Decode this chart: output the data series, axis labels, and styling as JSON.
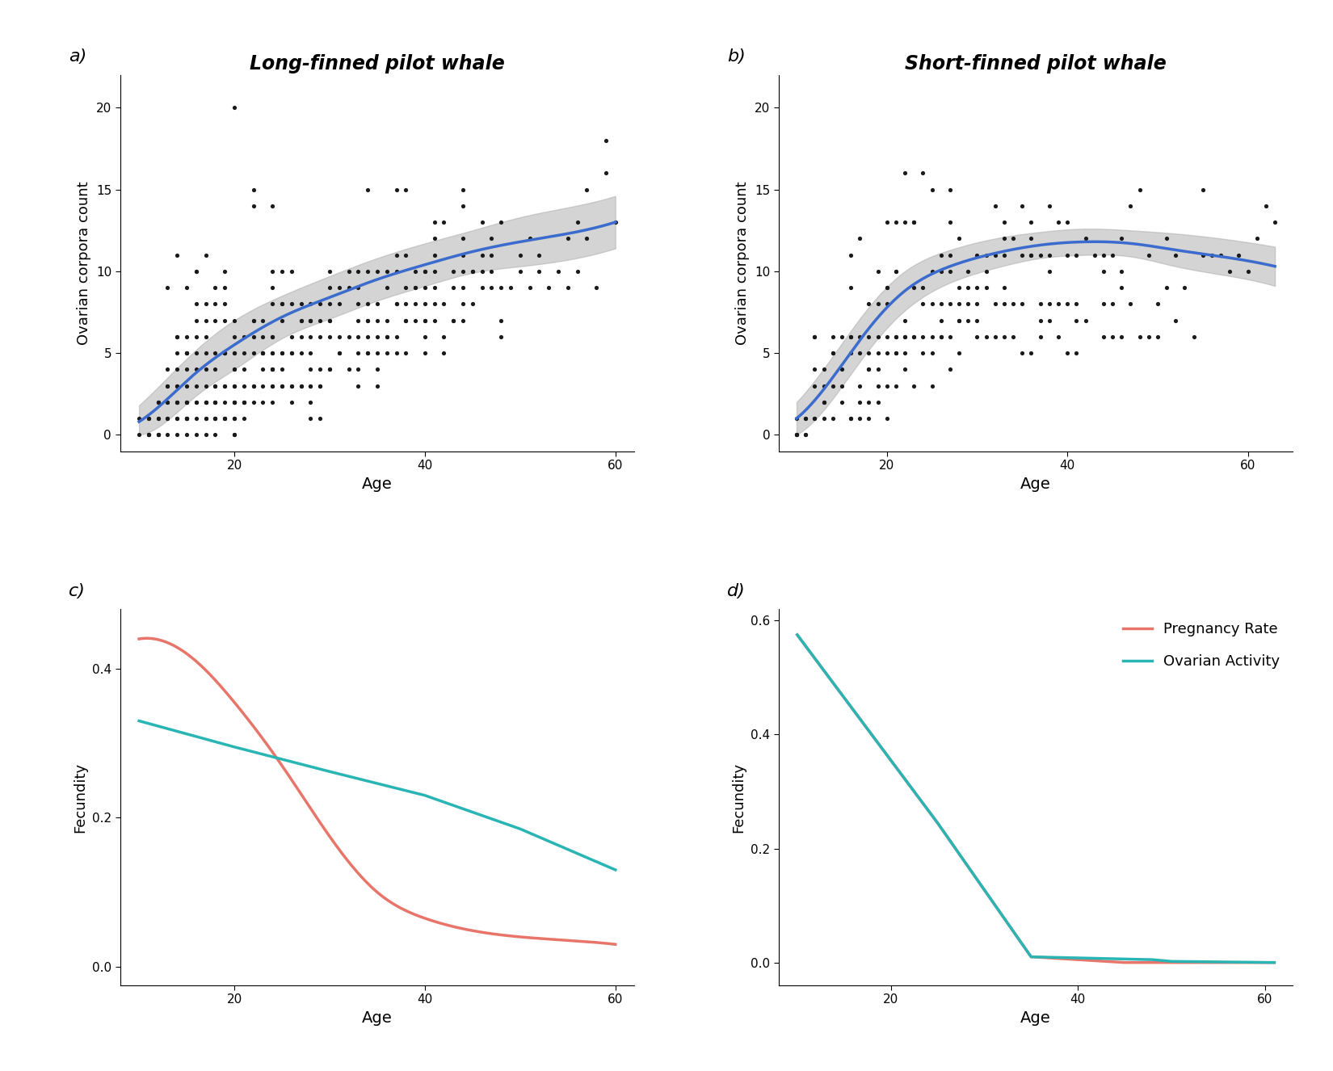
{
  "panel_a_title": "Long-finned pilot whale",
  "panel_b_title": "Short-finned pilot whale",
  "panel_a_label": "a)",
  "panel_b_label": "b)",
  "panel_c_label": "c)",
  "panel_d_label": "d)",
  "ylabel_scatter": "Ovarian corpora count",
  "xlabel_scatter": "Age",
  "ylabel_fecundity": "Fecundity",
  "xlabel_fecundity": "Age",
  "scatter_color": "#1a1a1a",
  "line_color": "#3b6bcc",
  "ci_color": "#aaaaaa",
  "pregnancy_color": "#e8756a",
  "ovarian_color": "#2ab5b5",
  "legend_pregnancy": "Pregnancy Rate",
  "legend_ovarian": "Ovarian Activity",
  "panel_a_scatter_x": [
    10,
    10,
    11,
    11,
    11,
    11,
    11,
    12,
    12,
    12,
    12,
    12,
    12,
    12,
    12,
    13,
    13,
    13,
    13,
    13,
    13,
    13,
    13,
    13,
    14,
    14,
    14,
    14,
    14,
    14,
    14,
    14,
    14,
    14,
    14,
    14,
    14,
    15,
    15,
    15,
    15,
    15,
    15,
    15,
    15,
    15,
    15,
    15,
    15,
    15,
    15,
    15,
    16,
    16,
    16,
    16,
    16,
    16,
    16,
    16,
    16,
    16,
    16,
    16,
    17,
    17,
    17,
    17,
    17,
    17,
    17,
    17,
    17,
    17,
    17,
    17,
    17,
    18,
    18,
    18,
    18,
    18,
    18,
    18,
    18,
    18,
    18,
    18,
    18,
    18,
    18,
    19,
    19,
    19,
    19,
    19,
    19,
    19,
    19,
    19,
    19,
    19,
    19,
    19,
    20,
    20,
    20,
    20,
    20,
    20,
    20,
    20,
    20,
    20,
    20,
    20,
    20,
    20,
    20,
    20,
    21,
    21,
    21,
    21,
    21,
    21,
    21,
    21,
    22,
    22,
    22,
    22,
    22,
    22,
    22,
    22,
    22,
    23,
    23,
    23,
    23,
    23,
    23,
    23,
    23,
    24,
    24,
    24,
    24,
    24,
    24,
    24,
    24,
    24,
    24,
    24,
    24,
    24,
    24,
    25,
    25,
    25,
    25,
    25,
    25,
    25,
    25,
    25,
    26,
    26,
    26,
    26,
    26,
    26,
    26,
    26,
    27,
    27,
    27,
    27,
    27,
    27,
    27,
    28,
    28,
    28,
    28,
    28,
    28,
    28,
    28,
    28,
    28,
    28,
    29,
    29,
    29,
    29,
    29,
    29,
    29,
    30,
    30,
    30,
    30,
    30,
    30,
    30,
    30,
    31,
    31,
    31,
    31,
    31,
    32,
    32,
    32,
    32,
    33,
    33,
    33,
    33,
    33,
    33,
    33,
    33,
    34,
    34,
    34,
    34,
    34,
    34,
    34,
    34,
    35,
    35,
    35,
    35,
    35,
    35,
    35,
    36,
    36,
    36,
    36,
    36,
    36,
    37,
    37,
    37,
    37,
    37,
    37,
    37,
    38,
    38,
    38,
    38,
    38,
    38,
    38,
    39,
    39,
    39,
    39,
    39,
    40,
    40,
    40,
    40,
    40,
    40,
    40,
    40,
    41,
    41,
    41,
    41,
    41,
    41,
    41,
    42,
    42,
    42,
    42,
    43,
    43,
    43,
    43,
    44,
    44,
    44,
    44,
    44,
    44,
    44,
    44,
    45,
    45,
    45,
    46,
    46,
    46,
    46,
    47,
    47,
    47,
    47,
    48,
    48,
    48,
    48,
    49,
    50,
    50,
    51,
    51,
    52,
    52,
    53,
    54,
    55,
    55,
    56,
    56,
    57,
    57,
    58,
    59,
    59,
    60
  ],
  "panel_a_scatter_y": [
    0,
    1,
    0,
    0,
    0,
    1,
    1,
    0,
    0,
    0,
    1,
    1,
    2,
    2,
    2,
    0,
    1,
    1,
    2,
    2,
    3,
    3,
    4,
    9,
    0,
    1,
    1,
    2,
    2,
    2,
    3,
    3,
    4,
    5,
    6,
    6,
    11,
    0,
    1,
    1,
    1,
    1,
    2,
    2,
    2,
    3,
    4,
    5,
    5,
    5,
    6,
    9,
    10,
    0,
    1,
    2,
    2,
    3,
    4,
    5,
    6,
    7,
    8,
    10,
    0,
    1,
    1,
    2,
    2,
    2,
    3,
    4,
    5,
    6,
    7,
    8,
    11,
    0,
    1,
    1,
    1,
    2,
    2,
    2,
    3,
    3,
    4,
    5,
    7,
    8,
    9,
    9,
    1,
    1,
    1,
    2,
    3,
    3,
    5,
    5,
    5,
    7,
    8,
    10,
    0,
    1,
    1,
    2,
    2,
    2,
    3,
    3,
    4,
    4,
    5,
    5,
    6,
    7,
    20,
    0,
    1,
    2,
    2,
    3,
    4,
    5,
    6,
    2,
    2,
    3,
    5,
    6,
    7,
    7,
    14,
    15,
    3,
    3,
    4,
    5,
    5,
    5,
    6,
    7,
    2,
    2,
    3,
    3,
    4,
    4,
    4,
    5,
    5,
    6,
    6,
    8,
    9,
    10,
    14,
    3,
    3,
    4,
    5,
    5,
    7,
    8,
    8,
    10,
    2,
    3,
    3,
    5,
    5,
    6,
    8,
    10,
    3,
    3,
    5,
    6,
    7,
    7,
    8,
    1,
    2,
    3,
    3,
    4,
    5,
    6,
    7,
    7,
    7,
    8,
    1,
    3,
    3,
    4,
    6,
    7,
    8,
    4,
    4,
    6,
    7,
    7,
    8,
    9,
    10,
    5,
    5,
    6,
    8,
    9,
    4,
    6,
    9,
    10,
    3,
    4,
    5,
    6,
    7,
    8,
    9,
    10,
    5,
    5,
    6,
    7,
    7,
    8,
    10,
    15,
    3,
    4,
    5,
    6,
    7,
    8,
    10,
    5,
    6,
    6,
    7,
    9,
    10,
    5,
    6,
    8,
    8,
    10,
    11,
    15,
    5,
    7,
    7,
    8,
    9,
    11,
    15,
    7,
    8,
    9,
    9,
    10,
    5,
    6,
    7,
    7,
    8,
    9,
    10,
    10,
    7,
    8,
    9,
    10,
    11,
    12,
    13,
    5,
    6,
    8,
    13,
    7,
    7,
    9,
    10,
    7,
    8,
    9,
    10,
    11,
    12,
    14,
    15,
    8,
    10,
    10,
    9,
    10,
    11,
    13,
    9,
    10,
    11,
    12,
    6,
    7,
    9,
    13,
    9,
    10,
    11,
    9,
    12,
    10,
    11,
    9,
    10,
    9,
    12,
    13,
    10,
    15,
    12,
    9,
    16,
    18,
    13
  ],
  "panel_b_scatter_x": [
    10,
    10,
    10,
    10,
    11,
    11,
    11,
    11,
    12,
    12,
    12,
    12,
    12,
    12,
    13,
    13,
    13,
    13,
    13,
    14,
    14,
    14,
    14,
    14,
    15,
    15,
    15,
    15,
    16,
    16,
    16,
    16,
    16,
    16,
    16,
    17,
    17,
    17,
    17,
    17,
    17,
    18,
    18,
    18,
    18,
    18,
    18,
    18,
    19,
    19,
    19,
    19,
    19,
    19,
    19,
    20,
    20,
    20,
    20,
    20,
    20,
    20,
    20,
    21,
    21,
    21,
    21,
    21,
    21,
    21,
    21,
    22,
    22,
    22,
    22,
    22,
    22,
    22,
    23,
    23,
    23,
    23,
    23,
    23,
    24,
    24,
    24,
    24,
    24,
    25,
    25,
    25,
    25,
    25,
    25,
    26,
    26,
    26,
    26,
    26,
    26,
    27,
    27,
    27,
    27,
    27,
    27,
    27,
    28,
    28,
    28,
    28,
    28,
    28,
    29,
    29,
    29,
    29,
    30,
    30,
    30,
    30,
    30,
    31,
    31,
    31,
    31,
    32,
    32,
    32,
    32,
    33,
    33,
    33,
    33,
    33,
    33,
    34,
    34,
    34,
    35,
    35,
    35,
    35,
    36,
    36,
    36,
    36,
    36,
    37,
    37,
    37,
    37,
    38,
    38,
    38,
    38,
    38,
    39,
    39,
    39,
    40,
    40,
    40,
    40,
    41,
    41,
    41,
    41,
    42,
    42,
    43,
    44,
    44,
    44,
    44,
    45,
    45,
    45,
    46,
    46,
    46,
    46,
    47,
    47,
    48,
    48,
    49,
    49,
    50,
    50,
    51,
    51,
    52,
    52,
    53,
    54,
    55,
    55,
    56,
    57,
    58,
    59,
    60,
    61,
    62,
    63
  ],
  "panel_b_scatter_y": [
    0,
    0,
    0,
    1,
    0,
    0,
    1,
    1,
    1,
    1,
    3,
    4,
    6,
    6,
    1,
    2,
    2,
    3,
    4,
    1,
    3,
    5,
    5,
    6,
    2,
    3,
    4,
    6,
    1,
    1,
    5,
    6,
    6,
    9,
    11,
    1,
    2,
    3,
    5,
    6,
    12,
    1,
    2,
    4,
    4,
    5,
    6,
    8,
    2,
    3,
    4,
    5,
    6,
    8,
    10,
    1,
    3,
    5,
    6,
    8,
    9,
    9,
    13,
    3,
    5,
    5,
    6,
    6,
    10,
    10,
    13,
    4,
    5,
    6,
    6,
    7,
    13,
    16,
    3,
    6,
    6,
    9,
    13,
    13,
    5,
    6,
    8,
    9,
    16,
    3,
    5,
    6,
    8,
    10,
    15,
    6,
    6,
    7,
    8,
    10,
    11,
    4,
    6,
    8,
    10,
    11,
    13,
    15,
    5,
    7,
    7,
    8,
    9,
    12,
    7,
    8,
    9,
    10,
    6,
    7,
    8,
    9,
    11,
    6,
    9,
    10,
    11,
    6,
    8,
    11,
    14,
    6,
    8,
    9,
    11,
    12,
    13,
    6,
    8,
    12,
    5,
    8,
    11,
    14,
    5,
    11,
    11,
    12,
    13,
    6,
    7,
    8,
    11,
    7,
    8,
    10,
    11,
    14,
    6,
    8,
    13,
    5,
    8,
    11,
    13,
    5,
    7,
    8,
    11,
    7,
    12,
    11,
    6,
    8,
    10,
    11,
    6,
    8,
    11,
    6,
    9,
    10,
    12,
    8,
    14,
    6,
    15,
    6,
    11,
    6,
    8,
    9,
    12,
    7,
    11,
    9,
    6,
    11,
    15,
    11,
    11,
    10,
    11,
    10,
    12,
    14,
    13
  ],
  "panel_a_smooth_x": [
    10,
    13,
    16,
    20,
    25,
    30,
    35,
    40,
    45,
    50,
    55,
    60
  ],
  "panel_a_smooth_y": [
    0.8,
    2.2,
    3.8,
    5.5,
    7.2,
    8.4,
    9.5,
    10.4,
    11.2,
    11.8,
    12.3,
    13.0
  ],
  "panel_a_ci_upper": [
    1.8,
    3.5,
    5.2,
    7.0,
    8.5,
    9.7,
    10.8,
    11.7,
    12.5,
    13.3,
    13.9,
    14.6
  ],
  "panel_a_ci_lower": [
    0.0,
    0.9,
    2.4,
    4.0,
    5.9,
    7.1,
    8.2,
    9.1,
    9.9,
    10.3,
    10.7,
    11.4
  ],
  "panel_b_smooth_x": [
    10,
    14,
    18,
    22,
    27,
    32,
    37,
    42,
    47,
    52,
    57,
    63
  ],
  "panel_b_smooth_y": [
    1.0,
    3.5,
    6.5,
    8.8,
    10.3,
    11.1,
    11.6,
    11.8,
    11.7,
    11.3,
    10.9,
    10.3
  ],
  "panel_b_ci_upper": [
    2.0,
    4.8,
    7.8,
    10.0,
    11.3,
    12.0,
    12.4,
    12.6,
    12.5,
    12.3,
    12.0,
    11.5
  ],
  "panel_b_ci_lower": [
    0.0,
    2.2,
    5.2,
    7.6,
    9.3,
    10.2,
    10.8,
    11.0,
    10.9,
    10.3,
    9.8,
    9.1
  ],
  "panel_c_pregnancy_x": [
    10,
    13,
    16,
    20,
    25,
    30,
    35,
    40,
    50,
    60
  ],
  "panel_c_pregnancy_y": [
    0.44,
    0.435,
    0.41,
    0.355,
    0.27,
    0.175,
    0.1,
    0.065,
    0.04,
    0.03
  ],
  "panel_c_ovarian_x": [
    10,
    20,
    30,
    40,
    50,
    60
  ],
  "panel_c_ovarian_y": [
    0.33,
    0.295,
    0.262,
    0.23,
    0.185,
    0.13
  ],
  "panel_d_pregnancy_x": [
    10,
    25,
    35,
    40,
    45,
    50,
    61
  ],
  "panel_d_pregnancy_y": [
    0.575,
    0.245,
    0.01,
    0.005,
    0.0,
    0.0,
    0.0
  ],
  "panel_d_ovarian_x": [
    10,
    25,
    35,
    48,
    50,
    61
  ],
  "panel_d_ovarian_y": [
    0.575,
    0.245,
    0.01,
    0.005,
    0.002,
    0.0
  ],
  "panel_a_xlim": [
    8,
    62
  ],
  "panel_a_ylim": [
    -1,
    22
  ],
  "panel_b_xlim": [
    8,
    65
  ],
  "panel_b_ylim": [
    -1,
    22
  ],
  "panel_c_xlim": [
    8,
    62
  ],
  "panel_c_ylim": [
    -0.025,
    0.48
  ],
  "panel_d_xlim": [
    8,
    63
  ],
  "panel_d_ylim": [
    -0.04,
    0.62
  ],
  "xticks_ab": [
    20,
    40,
    60
  ],
  "xticks_cd_a": [
    20,
    40,
    60
  ],
  "xticks_cd_b": [
    20,
    40,
    60
  ],
  "yticks_a": [
    0,
    5,
    10,
    15,
    20
  ],
  "yticks_b": [
    0,
    5,
    10,
    15,
    20
  ],
  "yticks_c": [
    0.0,
    0.2,
    0.4
  ],
  "yticks_d": [
    0.0,
    0.2,
    0.4,
    0.6
  ]
}
